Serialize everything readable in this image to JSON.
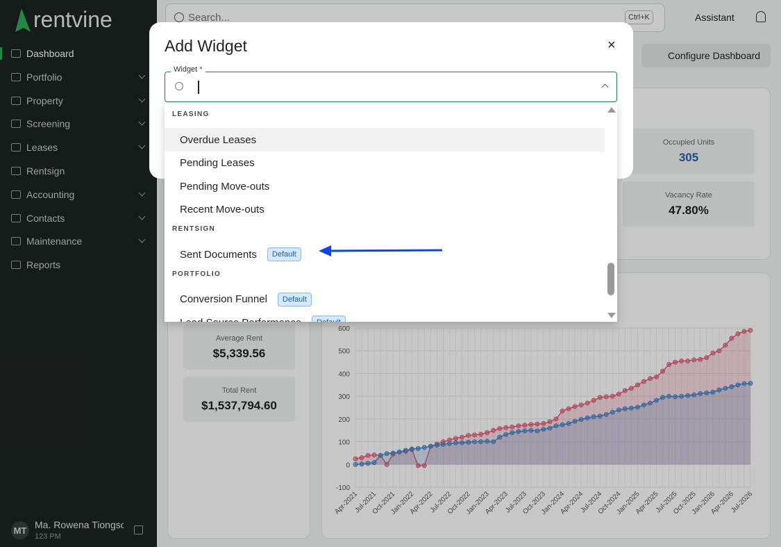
{
  "sidebar": {
    "logo": "rentvine",
    "nav": [
      {
        "label": "Dashboard",
        "expandable": false
      },
      {
        "label": "Portfolio",
        "expandable": true
      },
      {
        "label": "Property",
        "expandable": true
      },
      {
        "label": "Screening",
        "expandable": true
      },
      {
        "label": "Leases",
        "expandable": true
      },
      {
        "label": "Rentsign",
        "expandable": false
      },
      {
        "label": "Accounting",
        "expandable": true
      },
      {
        "label": "Contacts",
        "expandable": true
      },
      {
        "label": "Maintenance",
        "expandable": true
      },
      {
        "label": "Reports",
        "expandable": false
      }
    ],
    "user": {
      "initials": "MT",
      "name": "Ma. Rowena Tiongso",
      "subtitle": "123 PM"
    }
  },
  "topbar": {
    "search": "Search...",
    "shortcut": "Ctrl+K",
    "assistant": "Assistant",
    "configure": "Configure Dashboard"
  },
  "stats": [
    {
      "label": "Occupied Units",
      "value": "305"
    },
    {
      "label": "Vacancy Rate",
      "value": "47.80%"
    },
    {
      "label": "Average Rent",
      "value": "$5,339.56"
    },
    {
      "label": "Total Rent",
      "value": "$1,537,794.60"
    }
  ],
  "chart_data": {
    "type": "line",
    "categories": [
      "Apr-2021",
      null,
      null,
      "Jul-2021",
      null,
      null,
      "Oct-2021",
      null,
      null,
      "Jan-2022",
      null,
      null,
      "Apr-2022",
      null,
      null,
      "Jul-2022",
      null,
      null,
      "Oct-2022",
      null,
      null,
      "Jan-2023",
      null,
      null,
      "Apr-2023",
      null,
      null,
      "Jul-2023",
      null,
      null,
      "Oct-2023",
      null,
      null,
      "Jan-2024",
      null,
      null,
      "Apr-2024",
      null,
      null,
      "Jul-2024",
      null,
      null,
      "Oct-2024",
      null,
      null,
      "Jan-2025",
      null,
      null,
      "Apr-2025",
      null,
      null,
      "Jul-2025",
      null,
      null,
      "Oct-2025",
      null,
      null,
      "Jan-2026",
      null,
      null,
      "Apr-2026",
      null,
      null,
      "Jul-2026"
    ],
    "series": [
      {
        "color": "#e0607a",
        "values": [
          25,
          30,
          40,
          42,
          40,
          0,
          45,
          55,
          58,
          65,
          -5,
          -5,
          80,
          90,
          100,
          108,
          115,
          120,
          128,
          130,
          133,
          140,
          150,
          158,
          162,
          165,
          170,
          173,
          176,
          178,
          180,
          188,
          200,
          235,
          245,
          255,
          262,
          270,
          282,
          295,
          298,
          300,
          310,
          325,
          335,
          350,
          365,
          378,
          385,
          410,
          440,
          450,
          455,
          455,
          460,
          462,
          470,
          490,
          500,
          525,
          555,
          575,
          585,
          590
        ]
      },
      {
        "color": "#4a86c8",
        "values": [
          0,
          2,
          5,
          8,
          40,
          48,
          50,
          55,
          62,
          68,
          70,
          75,
          80,
          85,
          88,
          92,
          95,
          96,
          98,
          100,
          100,
          102,
          100,
          120,
          132,
          140,
          145,
          148,
          150,
          148,
          155,
          160,
          170,
          175,
          180,
          190,
          198,
          205,
          210,
          213,
          220,
          230,
          240,
          245,
          248,
          252,
          262,
          270,
          282,
          295,
          300,
          298,
          300,
          303,
          306,
          312,
          315,
          318,
          328,
          335,
          342,
          350,
          356,
          357
        ]
      }
    ],
    "ylim": [
      -100,
      600
    ],
    "yticks": [
      -100,
      0,
      100,
      200,
      300,
      400,
      500,
      600
    ],
    "grid": true
  },
  "modal": {
    "title": "Add Widget",
    "close": "×",
    "field_label": "Widget",
    "required": "*",
    "groups": [
      {
        "name": "LEASING",
        "items": [
          {
            "label": "Overdue Leases"
          },
          {
            "label": "Pending Leases"
          },
          {
            "label": "Pending Move-outs"
          },
          {
            "label": "Recent Move-outs"
          }
        ]
      },
      {
        "name": "RENTSIGN",
        "items": [
          {
            "label": "Sent Documents",
            "badge": "Default"
          }
        ]
      },
      {
        "name": "PORTFOLIO",
        "items": [
          {
            "label": "Conversion Funnel",
            "badge": "Default"
          },
          {
            "label": "Lead Source Performance",
            "badge": "Default"
          }
        ]
      }
    ]
  }
}
